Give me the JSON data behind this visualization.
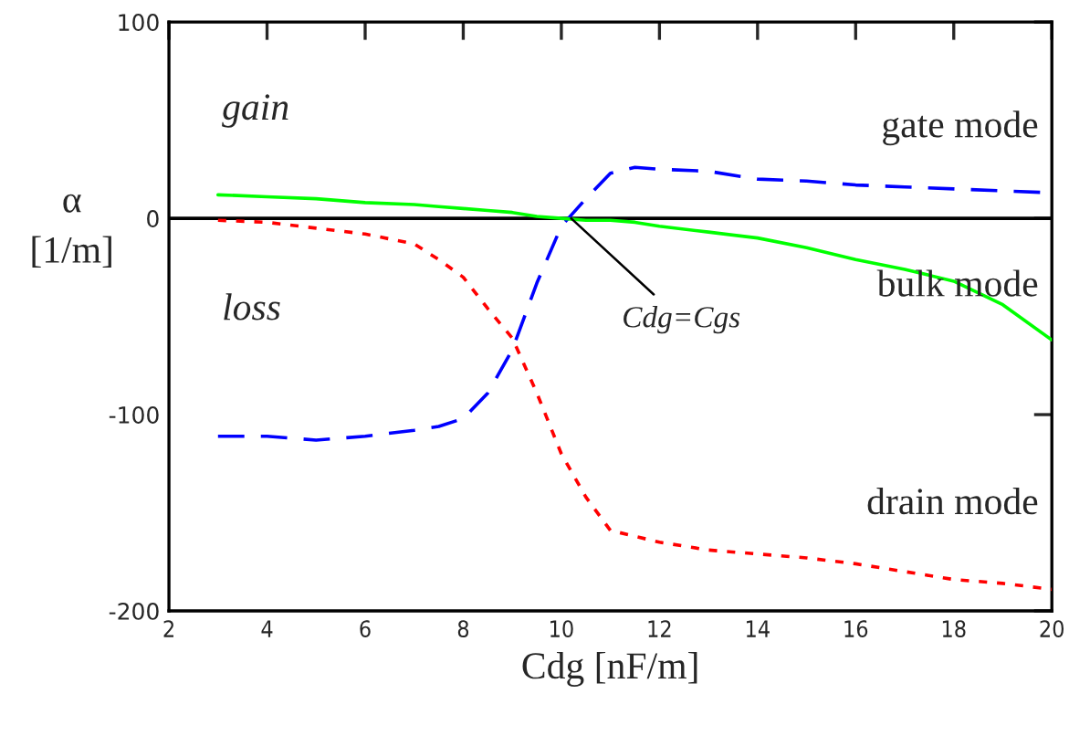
{
  "chart_data": {
    "type": "line",
    "xlabel": "Cdg [nF/m]",
    "ylabel": "α\n[1/m]",
    "x": [
      3,
      4,
      5,
      6,
      7,
      7.5,
      8,
      8.5,
      9,
      9.5,
      10,
      10.5,
      11,
      11.5,
      12,
      13,
      14,
      15,
      16,
      17,
      18,
      19,
      20
    ],
    "series": [
      {
        "name": "gate mode",
        "color": "#0000ff",
        "line_style": "dashed",
        "values": [
          -111,
          -111,
          -113,
          -111,
          -108,
          -106,
          -102,
          -89,
          -67,
          -33,
          -4,
          10,
          23,
          26,
          25,
          24,
          20,
          19,
          17,
          16,
          15,
          14,
          13
        ]
      },
      {
        "name": "bulk mode",
        "color": "#00ff00",
        "line_style": "solid",
        "values": [
          12,
          11,
          10,
          8,
          7,
          6,
          5,
          4,
          3,
          1,
          0,
          -1,
          -1,
          -2,
          -4,
          -7,
          -10,
          -15,
          -21,
          -26,
          -32,
          -44,
          -62
        ]
      },
      {
        "name": "drain mode",
        "color": "#ff0000",
        "line_style": "dotted",
        "values": [
          -1,
          -2,
          -5,
          -8,
          -13,
          -21,
          -30,
          -46,
          -61,
          -89,
          -120,
          -142,
          -159,
          -162,
          -165,
          -169,
          -171,
          -173,
          -176,
          -180,
          -184,
          -186,
          -189
        ]
      }
    ],
    "xlim": [
      2,
      20
    ],
    "ylim": [
      -200,
      100
    ],
    "xticks": [
      2,
      4,
      6,
      8,
      10,
      12,
      14,
      16,
      18,
      20
    ],
    "yticks": [
      -200,
      -100,
      0,
      100
    ],
    "ref_lines": [
      {
        "axis": "y",
        "value": 0,
        "color": "#000000"
      }
    ],
    "annotations": [
      "gain",
      "loss",
      {
        "text": "Cdg=Cgs",
        "x": 10.2,
        "y": 0
      }
    ],
    "grid": false,
    "legend": false,
    "marker": "none"
  }
}
